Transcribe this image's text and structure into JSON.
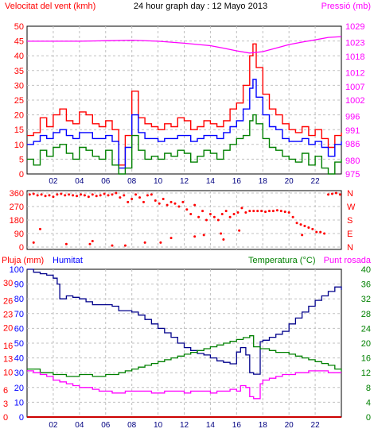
{
  "header": {
    "left_title": "Velocitat del vent (kmh)",
    "center_title": "24 hour graph day : 12 Mayo 2013",
    "right_title": "Pressió (mb)"
  },
  "panels": {
    "mid": {
      "compass_labels": [
        "N",
        "W",
        "S",
        "E",
        "N"
      ]
    },
    "bottom": {
      "label_rain": "Pluja (mm)",
      "label_humidity": "Humitat",
      "label_temp": "Temperatura (°C)",
      "label_dew": "Punt rosada"
    }
  },
  "colors": {
    "wind_gust": "#ff0000",
    "wind_avg": "#0000ff",
    "wind_low": "#008000",
    "pressure": "#ff00ff",
    "humidity": "#00008b",
    "temperature": "#008000",
    "dew_point": "#ff00ff",
    "rain": "#cc0000",
    "direction": "#ff0000",
    "grid": "#c0c0c0",
    "axis_left": "#ff0000",
    "axis_right": "#ff00ff",
    "axis_hum": "#0000ff",
    "axis_temp": "#008000"
  },
  "chart_data": [
    {
      "type": "line",
      "panel": "wind",
      "x_ticks": [
        "02",
        "04",
        "06",
        "08",
        "10",
        "12",
        "14",
        "16",
        "18",
        "20",
        "22"
      ],
      "x_range": [
        0,
        24
      ],
      "y_left": {
        "label": "Velocitat del vent (kmh)",
        "ticks": [
          0,
          5,
          10,
          15,
          20,
          25,
          30,
          35,
          40,
          45,
          50
        ],
        "range": [
          0,
          50
        ]
      },
      "y_right": {
        "label": "Pressió (mb)",
        "ticks": [
          975,
          980,
          986,
          991,
          996,
          1002,
          1007,
          1012,
          1018,
          1023,
          1029
        ],
        "range": [
          975,
          1029
        ]
      },
      "series": [
        {
          "key": "gust",
          "color_key": "wind_gust",
          "x": [
            0,
            0.5,
            1,
            1.5,
            2,
            2.5,
            3,
            3.5,
            4,
            4.5,
            5,
            5.5,
            6,
            6.5,
            7,
            7.5,
            8,
            8.5,
            9,
            9.5,
            10,
            10.5,
            11,
            11.5,
            12,
            12.5,
            13,
            13.5,
            14,
            14.5,
            15,
            15.5,
            16,
            16.5,
            17,
            17.25,
            17.5,
            18,
            18.5,
            19,
            19.5,
            20,
            20.5,
            21,
            21.5,
            22,
            22.5,
            23,
            23.5,
            24
          ],
          "values": [
            13,
            14,
            19,
            16,
            20,
            22,
            18,
            17,
            21,
            20,
            17,
            16,
            18,
            15,
            3,
            13,
            28,
            19,
            17,
            16,
            15,
            17,
            16,
            19,
            18,
            15,
            16,
            18,
            17,
            16,
            18,
            22,
            24,
            30,
            40,
            44,
            36,
            27,
            22,
            20,
            17,
            15,
            14,
            16,
            13,
            15,
            12,
            9,
            13,
            14
          ]
        },
        {
          "key": "avg",
          "color_key": "wind_avg",
          "x": [
            0,
            0.5,
            1,
            1.5,
            2,
            2.5,
            3,
            3.5,
            4,
            4.5,
            5,
            5.5,
            6,
            6.5,
            7,
            7.5,
            8,
            8.5,
            9,
            9.5,
            10,
            10.5,
            11,
            11.5,
            12,
            12.5,
            13,
            13.5,
            14,
            14.5,
            15,
            15.5,
            16,
            16.5,
            17,
            17.25,
            17.5,
            18,
            18.5,
            19,
            19.5,
            20,
            20.5,
            21,
            21.5,
            22,
            22.5,
            23,
            23.5,
            24
          ],
          "values": [
            10,
            11,
            13,
            12,
            14,
            15,
            13,
            12,
            14,
            14,
            12,
            12,
            13,
            11,
            2,
            9,
            20,
            14,
            12,
            12,
            11,
            12,
            12,
            13,
            13,
            11,
            12,
            13,
            13,
            12,
            14,
            16,
            18,
            22,
            29,
            32,
            26,
            20,
            16,
            15,
            12,
            11,
            11,
            12,
            10,
            11,
            9,
            6,
            10,
            11
          ]
        },
        {
          "key": "low",
          "color_key": "wind_low",
          "x": [
            0,
            0.5,
            1,
            1.5,
            2,
            2.5,
            3,
            3.5,
            4,
            4.5,
            5,
            5.5,
            6,
            6.5,
            7,
            7.5,
            8,
            8.5,
            9,
            9.5,
            10,
            10.5,
            11,
            11.5,
            12,
            12.5,
            13,
            13.5,
            14,
            14.5,
            15,
            15.5,
            16,
            16.5,
            17,
            17.25,
            17.5,
            18,
            18.5,
            19,
            19.5,
            20,
            20.5,
            21,
            21.5,
            22,
            22.5,
            23,
            23.5,
            24
          ],
          "values": [
            5,
            3,
            8,
            6,
            9,
            10,
            7,
            5,
            9,
            8,
            6,
            5,
            8,
            3,
            0,
            2,
            13,
            8,
            5,
            6,
            5,
            7,
            6,
            8,
            7,
            4,
            6,
            8,
            7,
            5,
            8,
            10,
            12,
            13,
            18,
            20,
            17,
            12,
            9,
            8,
            6,
            5,
            4,
            7,
            3,
            6,
            2,
            0,
            4,
            5
          ]
        },
        {
          "key": "pressure",
          "color_key": "pressure",
          "axis": "right",
          "x": [
            0,
            2,
            4,
            6,
            8,
            10,
            12,
            14,
            15,
            16,
            17,
            18,
            19,
            20,
            21,
            22,
            23,
            24
          ],
          "values": [
            1023.5,
            1023.5,
            1023.5,
            1023.7,
            1023.9,
            1023.5,
            1022.8,
            1021.9,
            1021.0,
            1020.0,
            1019.2,
            1019.7,
            1021.0,
            1022.3,
            1023.2,
            1024.0,
            1024.9,
            1025.2
          ]
        }
      ]
    },
    {
      "type": "scatter",
      "panel": "direction",
      "y_ticks": [
        0,
        90,
        180,
        270,
        360
      ],
      "y_range": [
        0,
        360
      ],
      "compass": [
        "N",
        "W",
        "S",
        "E",
        "N"
      ],
      "x": [
        0.2,
        0.5,
        0.8,
        1.1,
        1.4,
        1.7,
        2.0,
        2.3,
        2.6,
        2.9,
        3.2,
        3.5,
        3.8,
        4.1,
        4.4,
        4.7,
        5.0,
        5.3,
        5.6,
        5.9,
        6.2,
        6.5,
        6.8,
        7.1,
        7.4,
        7.7,
        8.0,
        8.3,
        8.6,
        8.9,
        9.2,
        9.5,
        9.8,
        10.1,
        10.4,
        10.7,
        11.0,
        11.3,
        11.6,
        11.9,
        12.2,
        12.5,
        12.8,
        13.1,
        13.4,
        13.7,
        14.0,
        14.3,
        14.6,
        14.9,
        15.2,
        15.5,
        15.8,
        16.1,
        16.4,
        16.7,
        17.0,
        17.3,
        17.6,
        17.9,
        18.2,
        18.5,
        18.8,
        19.1,
        19.4,
        19.7,
        20.0,
        20.3,
        20.6,
        20.9,
        21.2,
        21.5,
        21.8,
        22.1,
        22.4,
        22.7,
        23.0,
        23.3,
        23.6,
        23.9,
        1.0,
        3.0,
        5.0,
        7.5,
        9.0,
        11.0,
        13.5,
        15.0,
        0.5,
        4.8,
        6.5,
        10.2,
        12.8,
        14.8,
        16.2,
        21.0
      ],
      "values": [
        350,
        355,
        345,
        350,
        340,
        345,
        335,
        350,
        355,
        345,
        350,
        345,
        340,
        350,
        345,
        335,
        350,
        340,
        345,
        355,
        345,
        350,
        360,
        330,
        345,
        300,
        320,
        350,
        330,
        300,
        345,
        350,
        310,
        290,
        320,
        280,
        300,
        290,
        270,
        300,
        250,
        220,
        280,
        200,
        240,
        180,
        220,
        200,
        180,
        220,
        240,
        200,
        220,
        230,
        260,
        230,
        240,
        240,
        240,
        240,
        235,
        240,
        240,
        245,
        240,
        235,
        230,
        200,
        160,
        150,
        140,
        130,
        120,
        100,
        100,
        90,
        350,
        355,
        360,
        350,
        120,
        20,
        40,
        10,
        30,
        60,
        80,
        50,
        30,
        20,
        10,
        30,
        70,
        90,
        110,
        80
      ]
    },
    {
      "type": "line",
      "panel": "temp_hum",
      "x_ticks": [
        "02",
        "04",
        "06",
        "08",
        "10",
        "12",
        "14",
        "16",
        "18",
        "20",
        "22"
      ],
      "x_range": [
        0,
        24
      ],
      "y_left": {
        "label": "Pluja (mm)",
        "ticks": [
          0,
          3,
          6,
          10,
          13,
          16,
          20,
          23,
          26,
          30
        ],
        "range": [
          0,
          33
        ]
      },
      "y_left_hum": {
        "label": "Humitat",
        "ticks": [
          0,
          10,
          20,
          30,
          40,
          50,
          60,
          70,
          80,
          90,
          100
        ],
        "range": [
          0,
          100
        ]
      },
      "y_right": {
        "label": "Temperatura (°C)",
        "ticks": [
          0,
          4,
          8,
          12,
          16,
          20,
          24,
          28,
          32,
          36,
          40
        ],
        "range": [
          0,
          40
        ]
      },
      "series": [
        {
          "key": "humidity",
          "color_key": "humidity",
          "axis": "hum",
          "x": [
            0,
            0.5,
            1,
            1.5,
            2,
            2.3,
            2.5,
            3,
            3.5,
            4,
            4.5,
            5,
            5.5,
            6,
            6.5,
            7,
            7.5,
            8,
            8.5,
            9,
            9.5,
            10,
            10.5,
            11,
            11.5,
            12,
            12.5,
            13,
            13.5,
            14,
            14.5,
            15,
            15.5,
            16,
            16.3,
            16.7,
            17,
            17.3,
            17.8,
            18,
            18.5,
            19,
            19.5,
            20,
            20.5,
            21,
            21.5,
            22,
            22.5,
            23,
            23.5,
            24
          ],
          "values": [
            100,
            98,
            97,
            96,
            94,
            90,
            80,
            82,
            81,
            80,
            78,
            76,
            76,
            76,
            75,
            72,
            72,
            71,
            69,
            66,
            63,
            60,
            57,
            54,
            50,
            47,
            45,
            43,
            42,
            40,
            38,
            37,
            36,
            44,
            47,
            42,
            30,
            29,
            51,
            52,
            54,
            56,
            58,
            63,
            67,
            71,
            75,
            79,
            82,
            85,
            88,
            86
          ]
        },
        {
          "key": "temperature",
          "color_key": "temperature",
          "axis": "right",
          "x": [
            0,
            0.5,
            1,
            1.5,
            2,
            2.5,
            3,
            3.5,
            4,
            4.5,
            5,
            5.5,
            6,
            6.5,
            7,
            7.5,
            8,
            8.5,
            9,
            9.5,
            10,
            10.5,
            11,
            11.5,
            12,
            12.5,
            13,
            13.5,
            14,
            14.5,
            15,
            15.5,
            16,
            16.5,
            17,
            17.3,
            17.8,
            18,
            18.5,
            19,
            19.5,
            20,
            20.5,
            21,
            21.5,
            22,
            22.5,
            23,
            23.5,
            24
          ],
          "values": [
            13,
            13,
            12,
            12,
            11.5,
            11.5,
            11,
            11,
            11.5,
            11.5,
            11,
            11,
            11.5,
            11.5,
            12,
            12.5,
            13,
            13.5,
            14,
            14.5,
            15,
            15.5,
            16,
            16.5,
            17,
            17.5,
            18,
            18.5,
            19,
            19.5,
            20,
            20.5,
            21,
            21.5,
            22,
            19,
            18.5,
            18.5,
            18,
            17.5,
            17.5,
            17,
            16.5,
            16,
            15.5,
            15,
            14.5,
            14,
            13,
            12.5
          ]
        },
        {
          "key": "dew_point",
          "color_key": "dew_point",
          "axis": "right",
          "x": [
            0,
            0.5,
            1,
            1.5,
            2,
            2.5,
            3,
            3.5,
            4,
            4.5,
            5,
            5.5,
            6,
            6.5,
            7,
            7.5,
            8,
            8.5,
            9,
            9.5,
            10,
            10.5,
            11,
            11.5,
            12,
            12.5,
            13,
            13.5,
            14,
            14.5,
            15,
            15.5,
            16,
            16.3,
            16.7,
            17,
            17.3,
            17.8,
            18,
            18.5,
            19,
            19.5,
            20,
            20.5,
            21,
            21.5,
            22,
            22.5,
            23,
            23.5,
            24
          ],
          "values": [
            12.5,
            12,
            11.5,
            11,
            10,
            9.5,
            9,
            8.5,
            8,
            8,
            7.5,
            7,
            7,
            6.5,
            6.5,
            7,
            7,
            7,
            7,
            6.5,
            6.5,
            7,
            7,
            7,
            6.5,
            7,
            7,
            7,
            6.5,
            7,
            7,
            7.5,
            7,
            8.5,
            8,
            5.5,
            5,
            9,
            10,
            10.5,
            11,
            11.5,
            11.5,
            12,
            12,
            12.5,
            12.5,
            12.5,
            12,
            12,
            12
          ]
        },
        {
          "key": "rain",
          "color_key": "rain",
          "axis": "left",
          "x": [
            0,
            24
          ],
          "values": [
            0,
            0
          ]
        }
      ]
    }
  ]
}
